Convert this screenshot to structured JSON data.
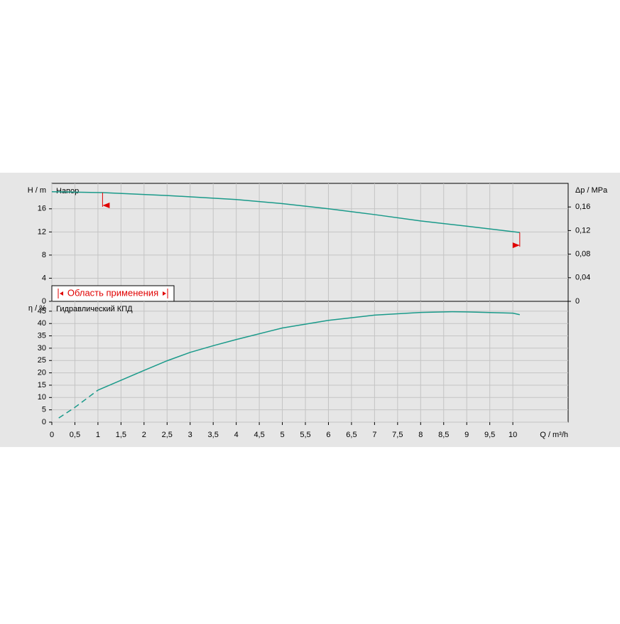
{
  "chart_data": [
    {
      "type": "line",
      "title": "Напор",
      "ylabel": "H / m",
      "y2label": "Δp / MPa",
      "ylim": [
        0,
        20.4
      ],
      "yticks": [
        0,
        4,
        8,
        12,
        16
      ],
      "y2lim": [
        0,
        0.2
      ],
      "y2ticks": [
        0,
        {
          "value": 0.04,
          "label": "0,04"
        },
        {
          "value": 0.08,
          "label": "0,08"
        },
        {
          "value": 0.12,
          "label": "0,12"
        },
        {
          "value": 0.16,
          "label": "0,16"
        }
      ],
      "grid": true,
      "series": [
        {
          "color": "#1a9a8a",
          "dash": false,
          "x": [
            0,
            1.1,
            2.5,
            4,
            5,
            6,
            7,
            8,
            9,
            10.15
          ],
          "values": [
            18.95,
            18.8,
            18.3,
            17.6,
            16.9,
            16,
            15,
            13.9,
            13,
            11.9
          ]
        }
      ],
      "range": {
        "label": "Область применения",
        "x": [
          1.1,
          10.15
        ],
        "color": "#e00000"
      }
    },
    {
      "type": "line",
      "title": "Гидравлический КПД",
      "ylabel": "η / %",
      "xlabel": "Q / m³/h",
      "xlim": [
        0,
        11.2
      ],
      "xticks": [
        0,
        {
          "value": 0.5,
          "label": "0,5"
        },
        1,
        {
          "value": 1.5,
          "label": "1,5"
        },
        2,
        {
          "value": 2.5,
          "label": "2,5"
        },
        3,
        {
          "value": 3.5,
          "label": "3,5"
        },
        4,
        {
          "value": 4.5,
          "label": "4,5"
        },
        5,
        {
          "value": 5.5,
          "label": "5,5"
        },
        6,
        {
          "value": 6.5,
          "label": "6,5"
        },
        7,
        {
          "value": 7.5,
          "label": "7,5"
        },
        8,
        {
          "value": 8.5,
          "label": "8,5"
        },
        9,
        {
          "value": 9.5,
          "label": "9,5"
        },
        10
      ],
      "ylim": [
        0,
        49
      ],
      "yticks": [
        0,
        5,
        10,
        15,
        20,
        25,
        30,
        35,
        40,
        45
      ],
      "grid": true,
      "series": [
        {
          "color": "#1a9a8a",
          "dash": true,
          "x": [
            0.15,
            0.5,
            1
          ],
          "values": [
            1.7,
            6,
            13
          ]
        },
        {
          "color": "#1a9a8a",
          "dash": false,
          "x": [
            1,
            1.5,
            2,
            2.5,
            3,
            3.5,
            4,
            5,
            6,
            7,
            8,
            8.7,
            9,
            10,
            10.15
          ],
          "values": [
            13,
            17,
            21,
            24.9,
            28.3,
            31,
            33.5,
            38.2,
            41.3,
            43.4,
            44.5,
            44.8,
            44.7,
            44.2,
            43.6
          ]
        }
      ]
    }
  ]
}
